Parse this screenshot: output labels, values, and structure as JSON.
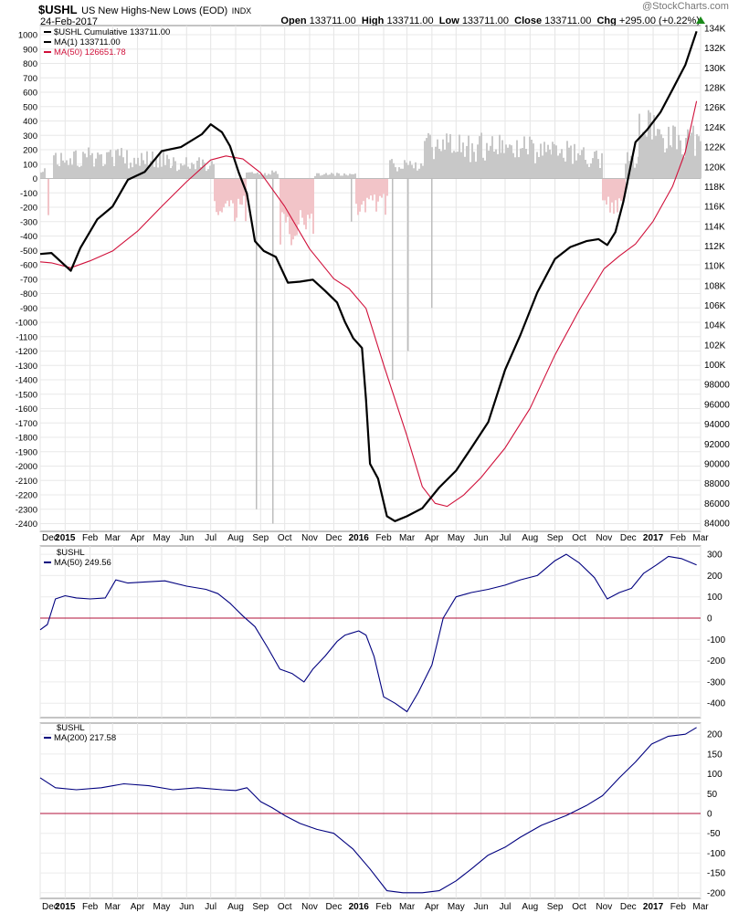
{
  "header": {
    "symbol": "$USHL",
    "name": "US New Highs-New Lows (EOD)",
    "exchange": "INDX",
    "date": "24-Feb-2017",
    "open_label": "Open",
    "open": "133711.00",
    "high_label": "High",
    "high": "133711.00",
    "low_label": "Low",
    "low": "133711.00",
    "close_label": "Close",
    "close": "133711.00",
    "chg_label": "Chg",
    "chg": "+295.00 (+0.22%)",
    "watermark": "@StockCharts.com"
  },
  "colors": {
    "cumulative": "#000000",
    "ma50_main": "#d0103a",
    "ma_lower": "#00007f",
    "zero_line": "#b0103a",
    "histo_pos": "#c8c8c8",
    "histo_neg": "#f2c4c8"
  },
  "x_axis": {
    "labels": [
      "Dec",
      "2015",
      "Feb",
      "Mar",
      "Apr",
      "May",
      "Jun",
      "Jul",
      "Aug",
      "Sep",
      "Oct",
      "Nov",
      "Dec",
      "2016",
      "Feb",
      "Mar",
      "Apr",
      "May",
      "Jun",
      "Jul",
      "Aug",
      "Sep",
      "Oct",
      "Nov",
      "Dec",
      "2017",
      "Feb",
      "Mar"
    ],
    "bold": [
      "2015",
      "2016",
      "2017"
    ]
  },
  "panel1": {
    "legend": [
      {
        "swatch": "#000000",
        "text": "$USHL Cumulative 133711.00"
      },
      {
        "swatch": "#000000",
        "text": "MA(1) 133711.00"
      },
      {
        "swatch": "#d0103a",
        "text": "MA(50) 126651.78"
      }
    ],
    "left_ticks": [
      "1000",
      "900",
      "800",
      "700",
      "600",
      "500",
      "400",
      "300",
      "200",
      "100",
      "0",
      "-100",
      "-200",
      "-300",
      "-400",
      "-500",
      "-600",
      "-700",
      "-800",
      "-900",
      "-1000",
      "-1100",
      "-1200",
      "-1300",
      "-1400",
      "-1500",
      "-1600",
      "-1700",
      "-1800",
      "-1900",
      "-2000",
      "-2100",
      "-2200",
      "-2300",
      "-2400"
    ],
    "right_ticks": [
      "134K",
      "132K",
      "130K",
      "128K",
      "126K",
      "124K",
      "122K",
      "120K",
      "118K",
      "116K",
      "114K",
      "112K",
      "110K",
      "108K",
      "106K",
      "104K",
      "102K",
      "100K",
      "98000",
      "96000",
      "94000",
      "92000",
      "90000",
      "88000",
      "86000",
      "84000"
    ]
  },
  "panel2": {
    "legend": [
      {
        "swatch": "none",
        "text": "$USHL"
      },
      {
        "swatch": "#00007f",
        "text": "MA(50) 249.56"
      }
    ],
    "right_ticks": [
      "300",
      "200",
      "100",
      "0",
      "-100",
      "-200",
      "-300",
      "-400"
    ]
  },
  "panel3": {
    "legend": [
      {
        "swatch": "none",
        "text": "$USHL"
      },
      {
        "swatch": "#00007f",
        "text": "MA(200) 217.58"
      }
    ],
    "right_ticks": [
      "200",
      "150",
      "100",
      "50",
      "0",
      "-50",
      "-100",
      "-150",
      "-200"
    ]
  },
  "chart_data": {
    "type": "line",
    "x_range": [
      "2014-12-01",
      "2017-03-01"
    ],
    "panels": [
      {
        "series": [
          {
            "name": "$USHL Cumulative",
            "axis": "right",
            "x": [
              "2014-12-01",
              "2014-12-15",
              "2015-01-08",
              "2015-01-20",
              "2015-02-10",
              "2015-03-01",
              "2015-03-20",
              "2015-04-10",
              "2015-05-01",
              "2015-05-25",
              "2015-06-20",
              "2015-07-01",
              "2015-07-15",
              "2015-07-25",
              "2015-08-05",
              "2015-08-15",
              "2015-08-25",
              "2015-09-05",
              "2015-09-20",
              "2015-10-05",
              "2015-10-20",
              "2015-11-05",
              "2015-11-20",
              "2015-12-05",
              "2015-12-15",
              "2015-12-25",
              "2016-01-05",
              "2016-01-10",
              "2016-01-15",
              "2016-01-25",
              "2016-02-05",
              "2016-02-15",
              "2016-03-01",
              "2016-03-20",
              "2016-04-10",
              "2016-05-01",
              "2016-05-20",
              "2016-06-10",
              "2016-07-01",
              "2016-07-20",
              "2016-08-10",
              "2016-09-01",
              "2016-09-20",
              "2016-10-10",
              "2016-10-25",
              "2016-11-05",
              "2016-11-15",
              "2016-11-25",
              "2016-12-10",
              "2016-12-25",
              "2017-01-10",
              "2017-01-25",
              "2017-02-10",
              "2017-02-24"
            ],
            "values": [
              111200,
              111300,
              109500,
              111800,
              114700,
              116000,
              118700,
              119500,
              121600,
              122000,
              123300,
              124300,
              123500,
              122100,
              119400,
              117300,
              112500,
              111500,
              110900,
              108300,
              108400,
              108600,
              107500,
              106300,
              104300,
              102700,
              101700,
              96500,
              90000,
              88500,
              84700,
              84200,
              84700,
              85500,
              87600,
              89300,
              91600,
              94200,
              99500,
              103000,
              107300,
              110700,
              111900,
              112500,
              112700,
              112100,
              113400,
              116500,
              122500,
              123800,
              125500,
              127800,
              130300,
              133700
            ]
          },
          {
            "name": "MA(50)",
            "axis": "right",
            "x": [
              "2014-12-01",
              "2014-12-15",
              "2015-01-08",
              "2015-02-01",
              "2015-03-01",
              "2015-04-01",
              "2015-05-01",
              "2015-06-01",
              "2015-07-01",
              "2015-07-20",
              "2015-08-10",
              "2015-09-01",
              "2015-10-01",
              "2015-11-01",
              "2015-12-01",
              "2015-12-20",
              "2016-01-10",
              "2016-02-01",
              "2016-03-01",
              "2016-03-20",
              "2016-04-05",
              "2016-04-20",
              "2016-05-10",
              "2016-06-01",
              "2016-07-01",
              "2016-08-01",
              "2016-09-01",
              "2016-10-01",
              "2016-11-01",
              "2016-11-20",
              "2016-12-10",
              "2017-01-01",
              "2017-01-25",
              "2017-02-10",
              "2017-02-24"
            ],
            "values": [
              110400,
              110300,
              109800,
              110500,
              111500,
              113500,
              116000,
              118500,
              120700,
              121100,
              120800,
              119400,
              116000,
              111700,
              108700,
              107700,
              105700,
              100000,
              92800,
              87700,
              86000,
              85700,
              86800,
              88600,
              91600,
              95600,
              101000,
              105500,
              109700,
              111000,
              112200,
              114500,
              118000,
              121500,
              126650
            ]
          }
        ]
      },
      {
        "name": "MA(50)",
        "series": [
          {
            "name": "MA(50)",
            "x": [
              "2014-12-01",
              "2014-12-10",
              "2014-12-20",
              "2015-01-01",
              "2015-01-15",
              "2015-02-01",
              "2015-02-20",
              "2015-03-05",
              "2015-03-20",
              "2015-04-10",
              "2015-05-05",
              "2015-06-01",
              "2015-06-25",
              "2015-07-10",
              "2015-07-25",
              "2015-08-10",
              "2015-08-25",
              "2015-09-10",
              "2015-09-25",
              "2015-10-10",
              "2015-10-25",
              "2015-11-05",
              "2015-11-20",
              "2015-12-05",
              "2015-12-15",
              "2016-01-01",
              "2016-01-10",
              "2016-01-20",
              "2016-02-01",
              "2016-02-15",
              "2016-03-01",
              "2016-03-15",
              "2016-04-01",
              "2016-04-15",
              "2016-05-01",
              "2016-05-20",
              "2016-06-10",
              "2016-07-01",
              "2016-07-20",
              "2016-08-10",
              "2016-09-01",
              "2016-09-15",
              "2016-10-01",
              "2016-10-20",
              "2016-11-05",
              "2016-11-20",
              "2016-12-05",
              "2016-12-20",
              "2017-01-05",
              "2017-01-20",
              "2017-02-05",
              "2017-02-24"
            ],
            "values": [
              -55,
              -30,
              90,
              105,
              95,
              90,
              95,
              180,
              165,
              170,
              175,
              150,
              135,
              115,
              70,
              10,
              -40,
              -140,
              -240,
              -260,
              -300,
              -240,
              -180,
              -110,
              -80,
              -60,
              -80,
              -180,
              -370,
              -400,
              -440,
              -350,
              -220,
              0,
              100,
              120,
              135,
              155,
              180,
              200,
              270,
              300,
              260,
              190,
              90,
              120,
              140,
              210,
              250,
              290,
              280,
              250
            ]
          }
        ]
      },
      {
        "name": "MA(200)",
        "series": [
          {
            "name": "MA(200)",
            "x": [
              "2014-12-01",
              "2014-12-20",
              "2015-01-15",
              "2015-02-15",
              "2015-03-15",
              "2015-04-15",
              "2015-05-15",
              "2015-06-15",
              "2015-07-15",
              "2015-08-01",
              "2015-08-15",
              "2015-09-01",
              "2015-09-15",
              "2015-10-01",
              "2015-10-20",
              "2015-11-10",
              "2015-12-01",
              "2015-12-25",
              "2016-01-15",
              "2016-02-05",
              "2016-02-25",
              "2016-03-20",
              "2016-04-10",
              "2016-05-01",
              "2016-05-20",
              "2016-06-10",
              "2016-07-01",
              "2016-07-20",
              "2016-08-15",
              "2016-09-15",
              "2016-10-10",
              "2016-10-30",
              "2016-11-20",
              "2016-12-10",
              "2016-12-30",
              "2017-01-20",
              "2017-02-10",
              "2017-02-24"
            ],
            "values": [
              90,
              65,
              60,
              65,
              75,
              70,
              60,
              65,
              60,
              58,
              65,
              30,
              15,
              -5,
              -25,
              -40,
              -50,
              -90,
              -140,
              -195,
              -200,
              -200,
              -195,
              -170,
              -140,
              -105,
              -85,
              -60,
              -30,
              -5,
              20,
              45,
              90,
              130,
              175,
              195,
              200,
              217
            ]
          }
        ]
      }
    ]
  }
}
